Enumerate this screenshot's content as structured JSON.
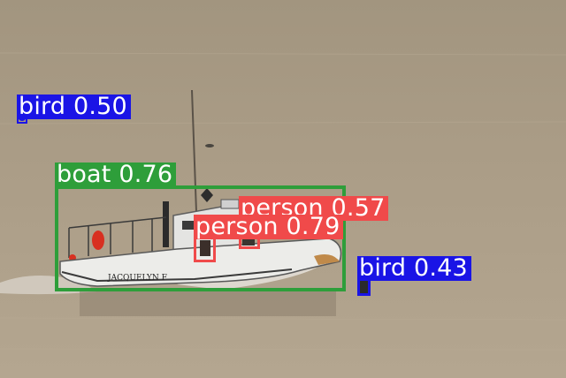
{
  "detections": [
    {
      "label": "bird",
      "score": "0.50",
      "color": "#1a14e6"
    },
    {
      "label": "boat",
      "score": "0.76",
      "color": "#2e9e3a"
    },
    {
      "label": "person",
      "score": "0.57",
      "color": "#f04a4a"
    },
    {
      "label": "person",
      "score": "0.79",
      "color": "#f04a4a"
    },
    {
      "label": "bird",
      "score": "0.43",
      "color": "#1a14e6"
    }
  ],
  "boat_name": "JACQUELYN F"
}
